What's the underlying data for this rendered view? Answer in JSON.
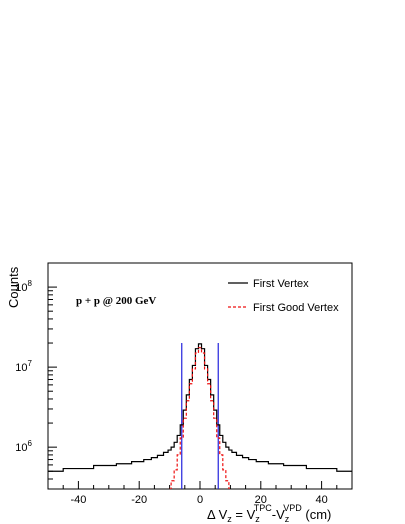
{
  "chart_data": {
    "type": "line",
    "ylabel": "Counts",
    "xlabel": {
      "main": "Δ V",
      "z1": "z",
      "eq": " = V",
      "z2": "z",
      "tpc": "TPC",
      "dash": "-V",
      "z3": "z",
      "vpd": "VPD",
      "unit": " (cm)"
    },
    "xlim": [
      -50,
      50
    ],
    "ylim": [
      300000,
      200000000
    ],
    "yscale": "log",
    "xticks": [
      -40,
      -20,
      0,
      20,
      40
    ],
    "yticks": [
      {
        "base": "10",
        "exp": "6",
        "value": 1000000
      },
      {
        "base": "10",
        "exp": "7",
        "value": 10000000
      },
      {
        "base": "10",
        "exp": "8",
        "value": 100000000
      }
    ],
    "annotation": "p + p @ 200 GeV",
    "legend_position": "top-right",
    "cut_lines": {
      "x": [
        -6,
        6
      ],
      "color": "#2222dd"
    },
    "series": [
      {
        "name": "First Vertex",
        "color": "#000000",
        "style": "solid",
        "points": [
          [
            -50,
            500000
          ],
          [
            -40,
            540000
          ],
          [
            -30,
            590000
          ],
          [
            -25,
            620000
          ],
          [
            -20,
            660000
          ],
          [
            -17,
            700000
          ],
          [
            -15,
            740000
          ],
          [
            -13,
            790000
          ],
          [
            -11,
            860000
          ],
          [
            -10,
            920000
          ],
          [
            -9,
            1000000
          ],
          [
            -8,
            1150000
          ],
          [
            -7,
            1400000
          ],
          [
            -6,
            1900000
          ],
          [
            -5,
            2900000
          ],
          [
            -4,
            4500000
          ],
          [
            -3,
            7000000
          ],
          [
            -2,
            10500000
          ],
          [
            -1,
            17000000
          ],
          [
            0,
            19500000
          ],
          [
            1,
            17000000
          ],
          [
            2,
            10500000
          ],
          [
            3,
            7000000
          ],
          [
            4,
            4500000
          ],
          [
            5,
            2900000
          ],
          [
            6,
            1900000
          ],
          [
            7,
            1400000
          ],
          [
            8,
            1150000
          ],
          [
            9,
            1000000
          ],
          [
            10,
            920000
          ],
          [
            11,
            860000
          ],
          [
            13,
            790000
          ],
          [
            15,
            740000
          ],
          [
            17,
            700000
          ],
          [
            20,
            660000
          ],
          [
            25,
            620000
          ],
          [
            30,
            590000
          ],
          [
            40,
            540000
          ],
          [
            50,
            500000
          ]
        ]
      },
      {
        "name": "First Good Vertex",
        "color": "#ee1111",
        "style": "dashed",
        "points": [
          [
            -10,
            300000
          ],
          [
            -9,
            380000
          ],
          [
            -8,
            520000
          ],
          [
            -7,
            800000
          ],
          [
            -6,
            1300000
          ],
          [
            -5,
            2300000
          ],
          [
            -4,
            3800000
          ],
          [
            -3,
            6200000
          ],
          [
            -2,
            9500000
          ],
          [
            -1,
            15000000
          ],
          [
            0,
            17500000
          ],
          [
            1,
            15000000
          ],
          [
            2,
            9500000
          ],
          [
            3,
            6200000
          ],
          [
            4,
            3800000
          ],
          [
            5,
            2300000
          ],
          [
            6,
            1300000
          ],
          [
            7,
            800000
          ],
          [
            8,
            520000
          ],
          [
            9,
            380000
          ],
          [
            10,
            300000
          ]
        ]
      }
    ]
  }
}
